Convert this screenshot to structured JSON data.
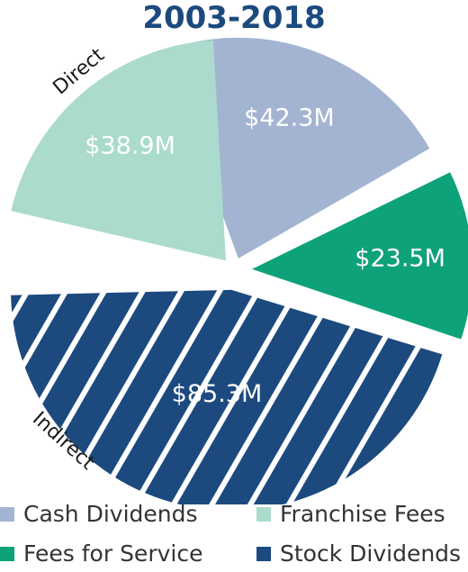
{
  "chart_data": {
    "type": "pie",
    "title": "2003-2018",
    "slices": [
      {
        "name": "Cash Dividends",
        "value": 42.3,
        "label": "$42.3M",
        "color": "#a3b3d2",
        "pattern": "solid",
        "group": "Direct"
      },
      {
        "name": "Fees for Service",
        "value": 23.5,
        "label": "$23.5M",
        "color": "#0ea27a",
        "pattern": "solid",
        "group": "Direct"
      },
      {
        "name": "Stock Dividends",
        "value": 85.3,
        "label": "$85.3M",
        "color": "#1c4a7e",
        "pattern": "white diagonal stripes",
        "group": "Indirect"
      },
      {
        "name": "Franchise Fees",
        "value": 38.9,
        "label": "$38.9M",
        "color": "#aadbcc",
        "pattern": "solid",
        "group": "Direct"
      }
    ],
    "groups": [
      "Direct",
      "Indirect"
    ],
    "legend": [
      "Cash Dividends",
      "Franchise Fees",
      "Fees for Service",
      "Stock Dividends"
    ],
    "legend_position": "bottom",
    "title_color": "#1c4a7e"
  }
}
